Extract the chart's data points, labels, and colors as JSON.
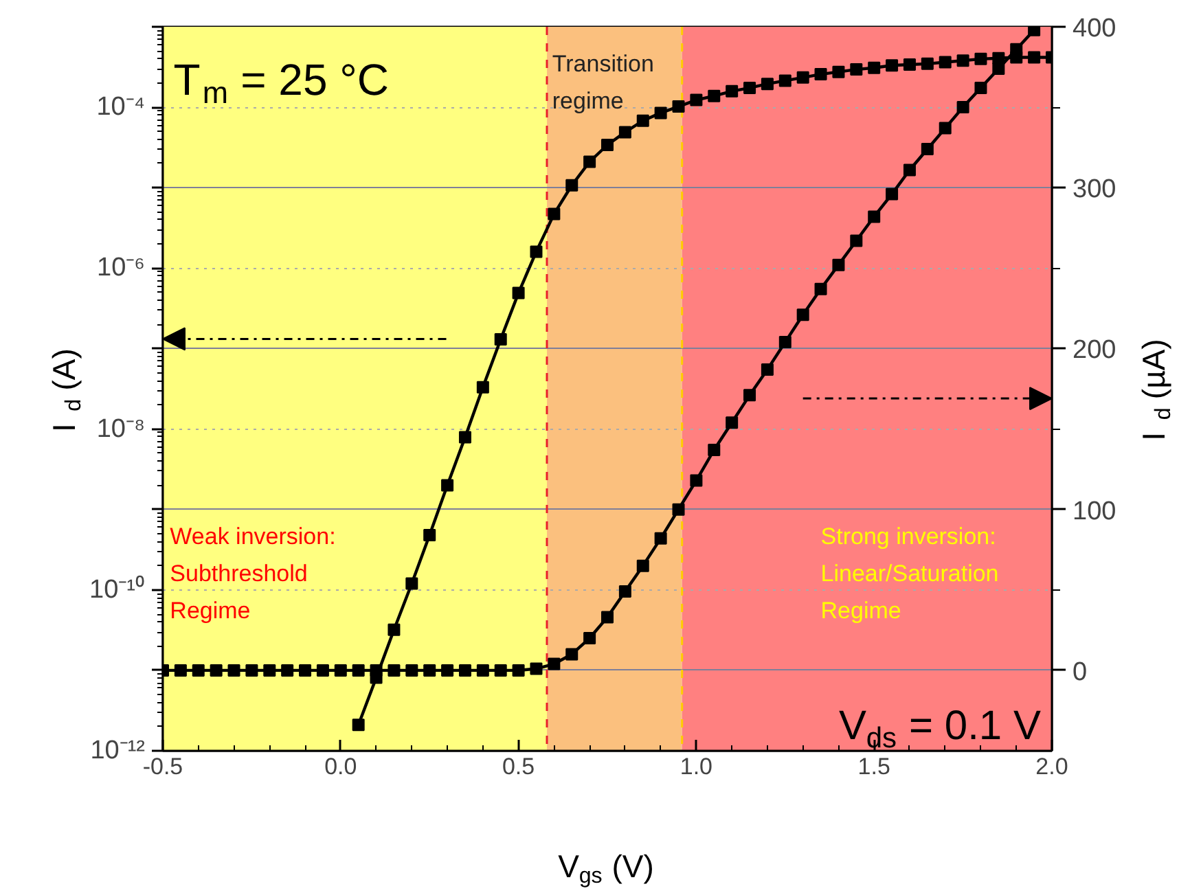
{
  "chart_data": {
    "type": "line",
    "xlabel": "V$_{gs}$ (V)",
    "ylabel": "I$_{d}$ (A)",
    "y2label": "I$_{d}$ (µA)",
    "annotations": [
      "T$_{m}$ = 25 °C",
      "V$_{ds}$ = 0.1 V"
    ],
    "xlim": [
      -0.5,
      2.0
    ],
    "xticks": [
      {
        "value": -0.5,
        "label": "-0.5"
      },
      {
        "value": 0,
        "label": "0.0"
      },
      {
        "value": 0.5,
        "label": "0.5"
      },
      {
        "value": 1,
        "label": "1.0"
      },
      {
        "value": 1.5,
        "label": "1.5"
      },
      {
        "value": 2,
        "label": "2.0"
      }
    ],
    "log": true,
    "ylim": [
      1e-12,
      0.001
    ],
    "yticks": [
      {
        "value": 1e-12,
        "label": "10⁻¹²"
      },
      {
        "value": 1e-11,
        "label": null
      },
      {
        "value": 1e-10,
        "label": "10⁻¹⁰"
      },
      {
        "value": 1e-09,
        "label": null
      },
      {
        "value": 1e-08,
        "label": "10⁻⁸"
      },
      {
        "value": 1e-07,
        "label": null
      },
      {
        "value": 1e-06,
        "label": "10⁻⁶"
      },
      {
        "value": 1e-05,
        "label": null
      },
      {
        "value": 0.0001,
        "label": "10⁻⁴"
      },
      {
        "value": 0.001,
        "label": null
      }
    ],
    "y2lim": [
      -50,
      400
    ],
    "y2ticks": [
      0,
      100,
      200,
      300,
      400
    ],
    "grid": "y",
    "marker": "square",
    "line_style": "solid",
    "bands": [
      {
        "axis": "x",
        "from": -0.5,
        "to": 0.58,
        "label": "Weak inversion:\nSubthreshold\nRegime",
        "color": "#ffff80"
      },
      {
        "axis": "x",
        "from": 0.58,
        "to": 0.96,
        "label": "Transition\nregime",
        "color": "#fbc07e"
      },
      {
        "axis": "x",
        "from": 0.96,
        "to": 2.0,
        "label": "Strong inversion:\nLinear/Saturation\nRegime",
        "color": "#ff8080"
      }
    ],
    "ref_lines": [
      {
        "axis": "x",
        "value": 0.58,
        "color": "#e8202a",
        "line_style": "dashed"
      },
      {
        "axis": "x",
        "value": 0.96,
        "color": "#ffcc00",
        "line_style": "dashed"
      }
    ],
    "series": [
      {
        "color": "#000000",
        "x": [
          0.05,
          0.1,
          0.15,
          0.2,
          0.25,
          0.3,
          0.35,
          0.4,
          0.45,
          0.5,
          0.55,
          0.6,
          0.65,
          0.7,
          0.75,
          0.8,
          0.85,
          0.9,
          0.95,
          1.0,
          1.05,
          1.1,
          1.15,
          1.2,
          1.25,
          1.3,
          1.35,
          1.4,
          1.45,
          1.5,
          1.55,
          1.6,
          1.65,
          1.7,
          1.75,
          1.8,
          1.85,
          1.9,
          1.95,
          2.0
        ],
        "values": [
          2.1e-12,
          8.1e-12,
          3.2e-11,
          1.2e-10,
          4.8e-10,
          2e-09,
          7.9e-09,
          3.3e-08,
          1.3e-07,
          4.9e-07,
          1.6e-06,
          4.7e-06,
          1.07e-05,
          2.1e-05,
          3.4e-05,
          4.9e-05,
          6.8e-05,
          8.5e-05,
          0.000102,
          0.000123,
          0.000138,
          0.000158,
          0.000174,
          0.000195,
          0.000214,
          0.000234,
          0.000257,
          0.000275,
          0.000295,
          0.000309,
          0.000331,
          0.000339,
          0.000347,
          0.000363,
          0.00038,
          0.000398,
          0.000407,
          0.000417,
          0.000417,
          0.000417
        ]
      },
      {
        "color": "#000000",
        "axis": "y2",
        "x": [
          -0.5,
          -0.45,
          -0.4,
          -0.35,
          -0.3,
          -0.25,
          -0.2,
          -0.15,
          -0.1,
          -0.05,
          0.0,
          0.05,
          0.1,
          0.15,
          0.2,
          0.25,
          0.3,
          0.35,
          0.4,
          0.45,
          0.5,
          0.55,
          0.6,
          0.65,
          0.7,
          0.75,
          0.8,
          0.85,
          0.9,
          0.95,
          1.0,
          1.05,
          1.1,
          1.15,
          1.2,
          1.25,
          1.3,
          1.35,
          1.4,
          1.45,
          1.5,
          1.55,
          1.6,
          1.65,
          1.7,
          1.75,
          1.8,
          1.85,
          1.9,
          1.95
        ],
        "values": [
          0,
          0,
          0,
          0,
          0,
          0,
          0,
          0,
          0,
          0,
          0,
          0,
          0,
          0,
          0,
          0,
          0,
          0,
          0,
          0,
          0,
          1,
          4,
          10,
          20,
          33,
          49,
          65,
          82,
          100,
          118,
          137,
          154,
          171,
          187,
          204,
          221,
          237,
          252,
          267,
          282,
          296,
          311,
          324,
          337,
          350,
          362,
          374,
          386,
          398
        ]
      }
    ]
  }
}
